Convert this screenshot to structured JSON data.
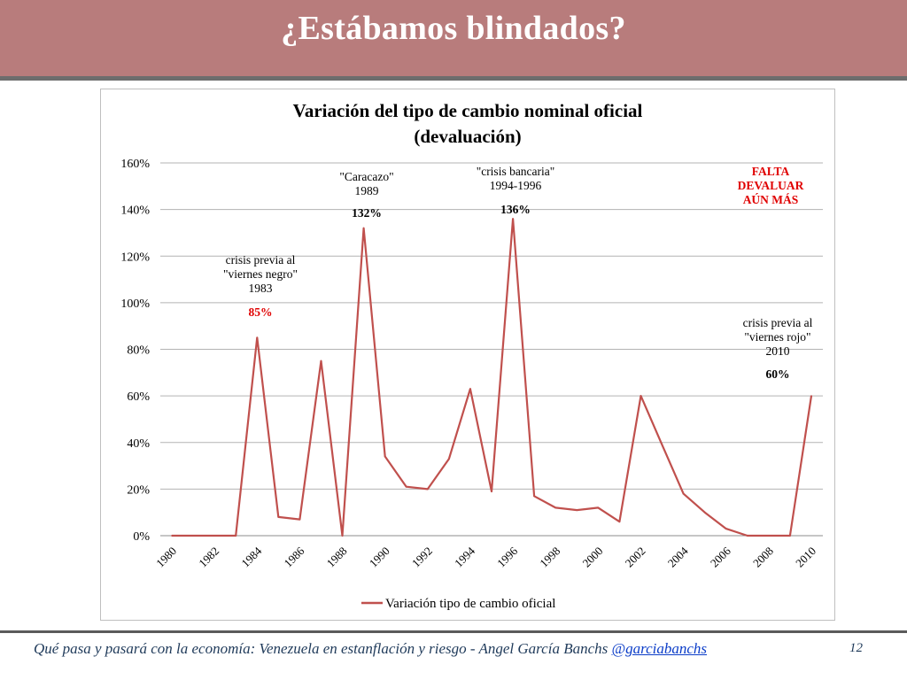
{
  "slide": {
    "title": "¿Estábamos blindados?",
    "footer_text": "Qué pasa y pasará con la economía: Venezuela en estanflación y riesgo - Angel García Banchs ",
    "footer_handle": "@garciabanchs",
    "page_number": "12"
  },
  "colors": {
    "header_bg": "#b87c7c",
    "series_line": "#c0504d",
    "highlight_red": "#e00000",
    "grid": "#b3b3b3"
  },
  "chart_data": {
    "type": "line",
    "title_line1": "Variación del tipo de cambio nominal oficial",
    "title_line2": "(devaluación)",
    "x": [
      1980,
      1981,
      1982,
      1983,
      1984,
      1985,
      1986,
      1987,
      1988,
      1989,
      1990,
      1991,
      1992,
      1993,
      1994,
      1995,
      1996,
      1997,
      1998,
      1999,
      2000,
      2001,
      2002,
      2003,
      2004,
      2005,
      2006,
      2007,
      2008,
      2009,
      2010
    ],
    "x_tick_labels": [
      "1980",
      "1982",
      "1984",
      "1986",
      "1988",
      "1990",
      "1992",
      "1994",
      "1996",
      "1998",
      "2000",
      "2002",
      "2004",
      "2006",
      "2008",
      "2010"
    ],
    "series": [
      {
        "name": "Variación tipo de cambio oficial",
        "values": [
          0,
          0,
          0,
          0,
          85,
          8,
          7,
          75,
          0,
          132,
          34,
          21,
          20,
          33,
          63,
          19,
          136,
          17,
          12,
          11,
          12,
          6,
          60,
          39,
          18,
          10,
          3,
          0,
          0,
          0,
          60
        ]
      }
    ],
    "y_tick_labels": [
      "0%",
      "20%",
      "40%",
      "60%",
      "80%",
      "100%",
      "120%",
      "140%",
      "160%"
    ],
    "ylim": [
      0,
      160
    ],
    "grid": true,
    "legend_position": "bottom",
    "annotations": [
      {
        "id": "a1983",
        "lines": [
          "crisis previa al",
          "\"viernes negro\"",
          "1983"
        ],
        "value": "85%",
        "value_red": true
      },
      {
        "id": "a1989",
        "lines": [
          "\"Caracazo\"",
          "1989"
        ],
        "value": "132%",
        "value_red": false
      },
      {
        "id": "a1994",
        "lines": [
          "\"crisis bancaria\"",
          "1994-1996"
        ],
        "value": "136%",
        "value_red": false
      },
      {
        "id": "a2010",
        "lines": [
          "crisis previa al",
          "\"viernes rojo\"",
          "2010"
        ],
        "value": "60%",
        "value_red": false
      },
      {
        "id": "afalta",
        "lines": [
          "FALTA",
          "DEVALUAR",
          "AÚN MÁS"
        ],
        "value": "",
        "value_red": true
      }
    ]
  }
}
